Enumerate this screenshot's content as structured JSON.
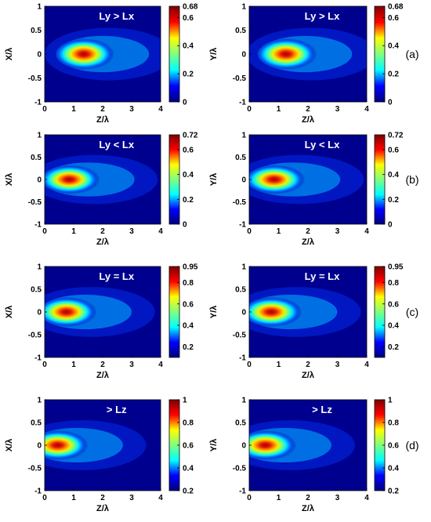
{
  "figure_labels": [
    "(a)",
    "(b)",
    "(c)",
    "(d)"
  ],
  "colormap": {
    "name": "jet",
    "background_hex": "#00008f",
    "stops": [
      "#00007f",
      "#0000ff",
      "#00ffff",
      "#7fff7f",
      "#ffff00",
      "#ff0000",
      "#7f0000"
    ]
  },
  "chart_data": [
    {
      "type": "heatmap",
      "panel": "(a) left",
      "annotation": "Ly > Lx",
      "xlabel": "Z/λ",
      "ylabel": "X/λ",
      "xlim": [
        0,
        4
      ],
      "ylim": [
        -1,
        1
      ],
      "xticks": [
        "0",
        "1",
        "2",
        "3",
        "4"
      ],
      "yticks": [
        "1",
        "0.5",
        "0",
        "-0.5",
        "-1"
      ],
      "colorbar": {
        "range": [
          0,
          0.68
        ],
        "ticks": [
          "0.68",
          "0.6",
          "0.4",
          "0.2",
          "0"
        ]
      },
      "peak": {
        "z": 1.3,
        "value": 0.68
      }
    },
    {
      "type": "heatmap",
      "panel": "(a) right",
      "annotation": "Ly > Lx",
      "xlabel": "Z/λ",
      "ylabel": "Y/λ",
      "xlim": [
        0,
        4
      ],
      "ylim": [
        -1,
        1
      ],
      "xticks": [
        "0",
        "1",
        "2",
        "3",
        "4"
      ],
      "yticks": [
        "1",
        "0.5",
        "0",
        "-0.5",
        "-1"
      ],
      "colorbar": {
        "range": [
          0,
          0.68
        ],
        "ticks": [
          "0.68",
          "0.6",
          "0.4",
          "0.2",
          "0"
        ]
      },
      "peak": {
        "z": 1.2,
        "value": 0.68
      }
    },
    {
      "type": "heatmap",
      "panel": "(b) left",
      "annotation": "Ly < Lx",
      "xlabel": "Z/λ",
      "ylabel": "X/λ",
      "xlim": [
        0,
        4
      ],
      "ylim": [
        -1,
        1
      ],
      "xticks": [
        "0",
        "1",
        "2",
        "3",
        "4"
      ],
      "yticks": [
        "1",
        "0.5",
        "0",
        "-0.5",
        "-1"
      ],
      "colorbar": {
        "range": [
          0,
          0.72
        ],
        "ticks": [
          "0.72",
          "0.6",
          "0.4",
          "0.2",
          "0"
        ]
      },
      "peak": {
        "z": 0.8,
        "value": 0.72
      }
    },
    {
      "type": "heatmap",
      "panel": "(b) right",
      "annotation": "Ly < Lx",
      "xlabel": "Z/λ",
      "ylabel": "Y/λ",
      "xlim": [
        0,
        4
      ],
      "ylim": [
        -1,
        1
      ],
      "xticks": [
        "0",
        "1",
        "2",
        "3",
        "4"
      ],
      "yticks": [
        "1",
        "0.5",
        "0",
        "-0.5",
        "-1"
      ],
      "colorbar": {
        "range": [
          0,
          0.72
        ],
        "ticks": [
          "0.72",
          "0.6",
          "0.4",
          "0.2",
          "0"
        ]
      },
      "peak": {
        "z": 0.8,
        "value": 0.72
      }
    },
    {
      "type": "heatmap",
      "panel": "(c) left",
      "annotation": "Ly = Lx",
      "xlabel": "Z/λ",
      "ylabel": "X/λ",
      "xlim": [
        0,
        4
      ],
      "ylim": [
        -1,
        1
      ],
      "xticks": [
        "0",
        "1",
        "2",
        "3",
        "4"
      ],
      "yticks": [
        "1",
        "0.5",
        "0",
        "-0.5",
        "-1"
      ],
      "colorbar": {
        "range": [
          0.1,
          0.95
        ],
        "ticks": [
          "0.95",
          "0.8",
          "0.6",
          "0.4",
          "0.2"
        ]
      },
      "peak": {
        "z": 0.7,
        "value": 0.95
      }
    },
    {
      "type": "heatmap",
      "panel": "(c) right",
      "annotation": "Ly = Lx",
      "xlabel": "Z/λ",
      "ylabel": "Y/λ",
      "xlim": [
        0,
        4
      ],
      "ylim": [
        -1,
        1
      ],
      "xticks": [
        "0",
        "1",
        "2",
        "3",
        "4"
      ],
      "yticks": [
        "1",
        "0.5",
        "0",
        "-0.5",
        "-1"
      ],
      "colorbar": {
        "range": [
          0.1,
          0.95
        ],
        "ticks": [
          "0.95",
          "0.8",
          "0.6",
          "0.4",
          "0.2"
        ]
      },
      "peak": {
        "z": 0.7,
        "value": 0.95
      }
    },
    {
      "type": "heatmap",
      "panel": "(d) left",
      "annotation": "> Lz",
      "xlabel": "Z/λ",
      "ylabel": "X/λ",
      "xlim": [
        0,
        4
      ],
      "ylim": [
        -1,
        1
      ],
      "xticks": [
        "0",
        "1",
        "2",
        "3",
        "4"
      ],
      "yticks": [
        "1",
        "0.5",
        "0",
        "-0.5",
        "-1"
      ],
      "colorbar": {
        "range": [
          0.2,
          1
        ],
        "ticks": [
          "1",
          "0.8",
          "0.6",
          "0.4",
          "0.2"
        ]
      },
      "peak": {
        "z": 0.4,
        "value": 1
      }
    },
    {
      "type": "heatmap",
      "panel": "(d) right",
      "annotation": "> Lz",
      "xlabel": "Z/λ",
      "ylabel": "Y/λ",
      "xlim": [
        0,
        4
      ],
      "ylim": [
        -1,
        1
      ],
      "xticks": [
        "0",
        "1",
        "2",
        "3",
        "4"
      ],
      "yticks": [
        "1",
        "0.5",
        "0",
        "-0.5",
        "-1"
      ],
      "colorbar": {
        "range": [
          0.2,
          1
        ],
        "ticks": [
          "1",
          "0.8",
          "0.6",
          "0.4",
          "0.2"
        ]
      },
      "peak": {
        "z": 0.5,
        "value": 1
      }
    }
  ]
}
